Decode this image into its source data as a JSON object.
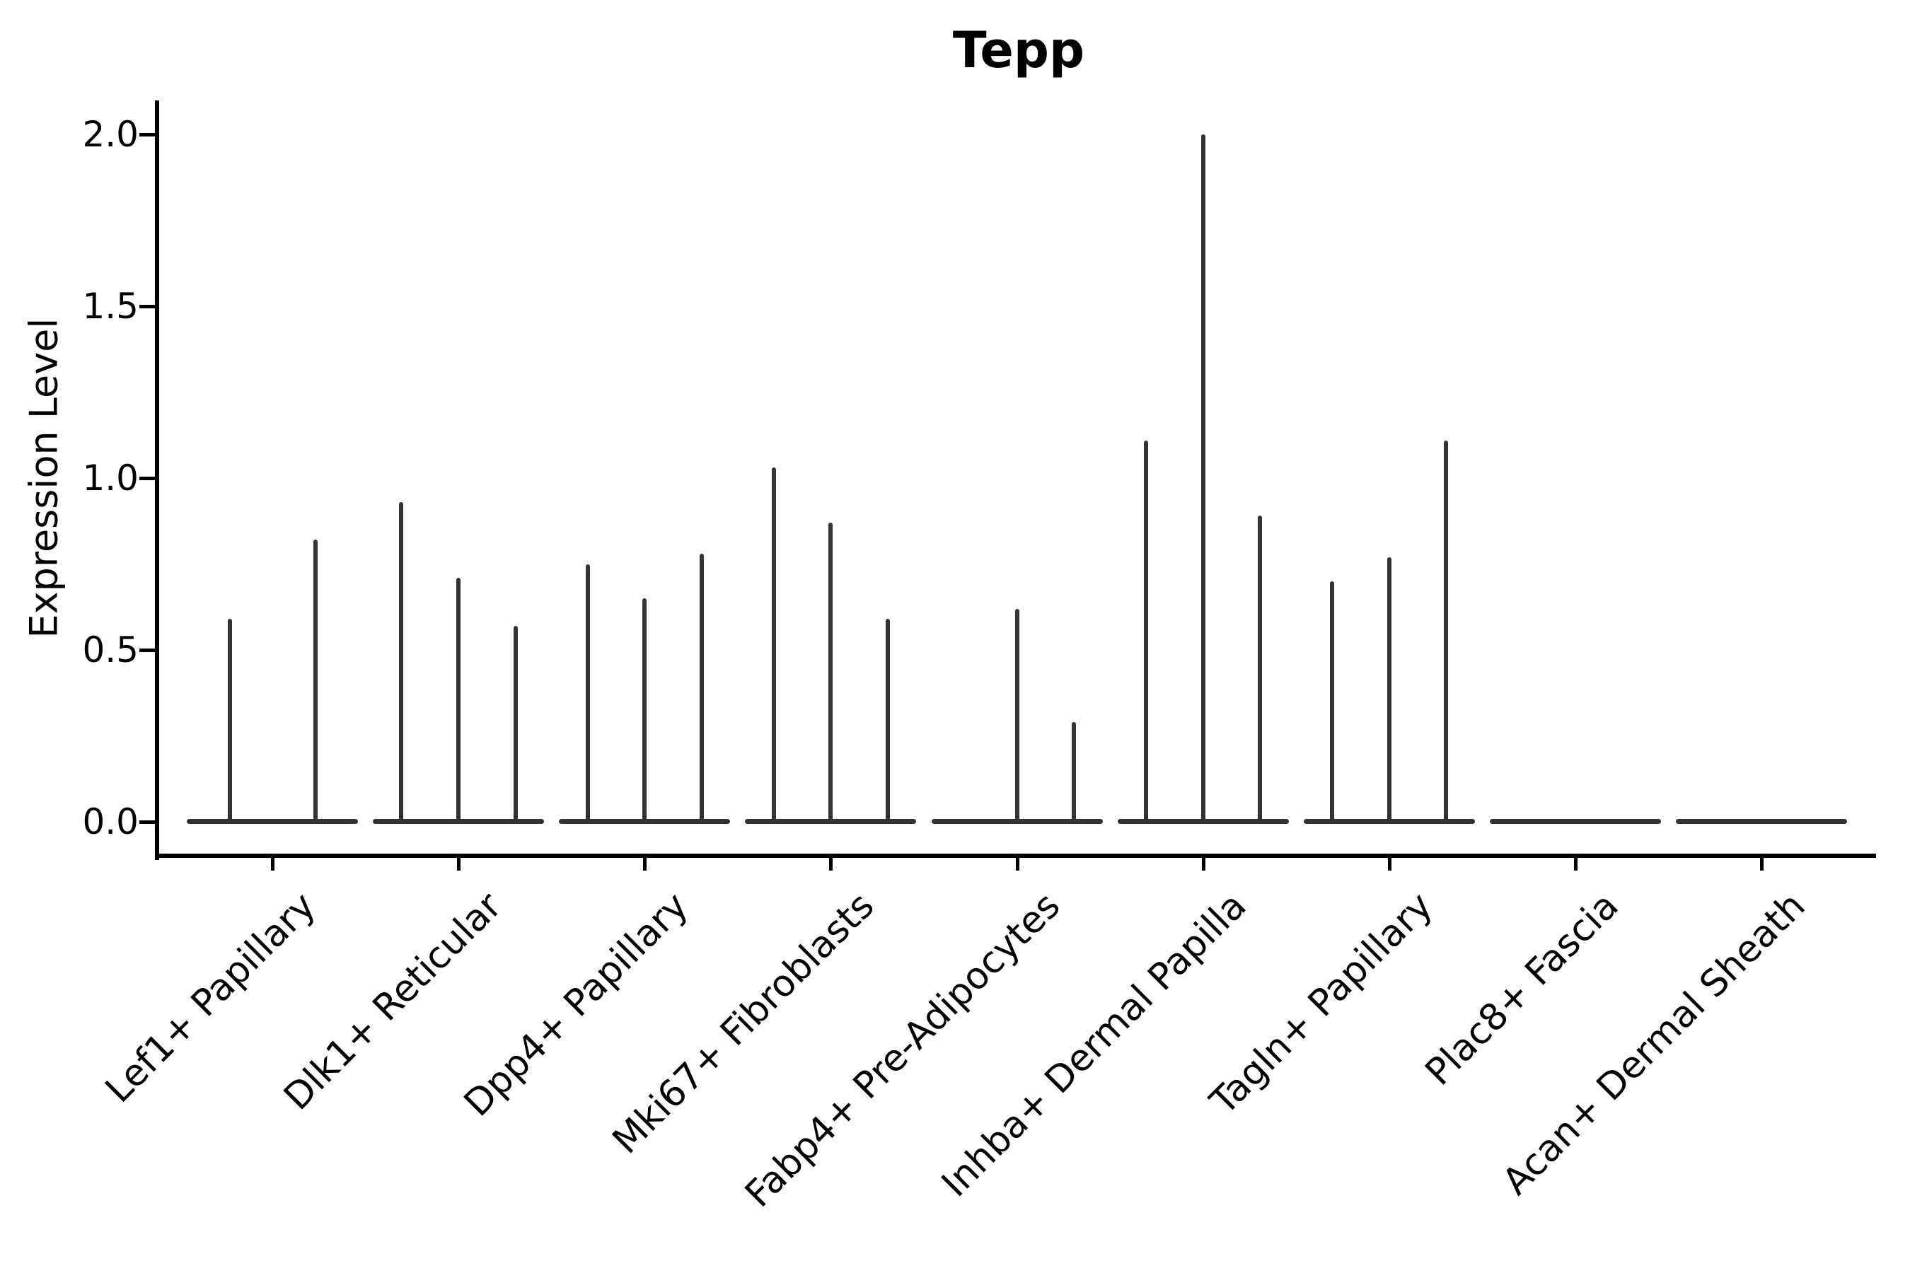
{
  "chart_data": {
    "type": "violin",
    "title": "Tepp",
    "xlabel": "",
    "ylabel": "Expression Level",
    "ylim": [
      0,
      2.1
    ],
    "yticks": [
      0.0,
      0.5,
      1.0,
      1.5,
      2.0
    ],
    "ytick_labels": [
      "0.0",
      "0.5",
      "1.0",
      "1.5",
      "2.0"
    ],
    "grid": false,
    "legend": null,
    "categories": [
      "Lef1+ Papillary",
      "Dlk1+ Reticular",
      "Dpp4+ Papillary",
      "Mki67+ Fibroblasts",
      "Fabp4+ Pre-Adipocytes",
      "Inhba+ Dermal Papilla",
      "Tagln+ Papillary",
      "Plac8+ Fascia",
      "Acan+ Dermal Sheath"
    ],
    "groups": [
      {
        "label": "Lef1+ Papillary",
        "violins": [
          0.59,
          0.82
        ]
      },
      {
        "label": "Dlk1+ Reticular",
        "violins": [
          0.93,
          0.71,
          0.57
        ]
      },
      {
        "label": "Dpp4+ Papillary",
        "violins": [
          0.75,
          0.65,
          0.78
        ]
      },
      {
        "label": "Mki67+ Fibroblasts",
        "violins": [
          1.03,
          0.87,
          0.59
        ]
      },
      {
        "label": "Fabp4+ Pre-Adipocytes",
        "violins": [
          null,
          0.62,
          0.29
        ]
      },
      {
        "label": "Inhba+ Dermal Papilla",
        "violins": [
          1.11,
          2.0,
          0.89
        ]
      },
      {
        "label": "Tagln+ Papillary",
        "violins": [
          0.7,
          0.77,
          1.11
        ]
      },
      {
        "label": "Plac8+ Fascia",
        "violins": [
          null,
          null,
          null
        ]
      },
      {
        "label": "Acan+ Dermal Sheath",
        "violins": [
          null,
          null,
          null
        ]
      }
    ],
    "colors": {
      "violin": "#333333",
      "axis": "#000000",
      "text": "#000000",
      "background": "#ffffff"
    }
  }
}
